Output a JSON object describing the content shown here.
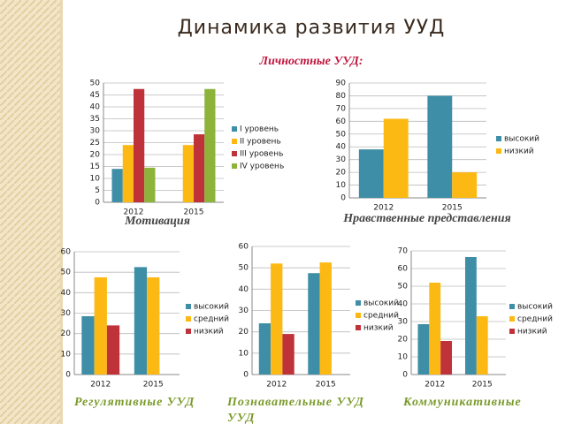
{
  "slide": {
    "title": "Динамика развития УУД",
    "subtitle": "Личностные УУД:",
    "captions": [
      "Мотивация",
      "Нравственные представления",
      "Регулятивные УУД",
      "Познавательные УУД",
      "Коммуникативные",
      "УУД"
    ]
  },
  "chart_data": [
    {
      "type": "bar",
      "categories": [
        "2012",
        "2015"
      ],
      "ylim": [
        0,
        50
      ],
      "yticks": [
        0,
        5,
        10,
        15,
        20,
        25,
        30,
        35,
        40,
        45,
        50
      ],
      "grid": true,
      "legend": "right",
      "series": [
        {
          "name": "I уровень",
          "color": "#3e8ea7",
          "values": [
            14,
            null
          ]
        },
        {
          "name": "II уровень",
          "color": "#fdb913",
          "values": [
            24,
            24
          ]
        },
        {
          "name": "III уровень",
          "color": "#c0323a",
          "values": [
            47.5,
            28.5
          ]
        },
        {
          "name": "IV уровень",
          "color": "#8db33a",
          "values": [
            14.5,
            47.5
          ]
        }
      ]
    },
    {
      "type": "bar",
      "categories": [
        "2012",
        "2015"
      ],
      "ylim": [
        0,
        90
      ],
      "yticks": [
        0,
        10,
        20,
        30,
        40,
        50,
        60,
        70,
        80,
        90
      ],
      "grid": true,
      "legend": "right",
      "series": [
        {
          "name": "высокий",
          "color": "#3e8ea7",
          "values": [
            38,
            80
          ]
        },
        {
          "name": "низкий",
          "color": "#fdb913",
          "values": [
            62,
            20
          ]
        }
      ]
    },
    {
      "type": "bar",
      "categories": [
        "2012",
        "2015"
      ],
      "ylim": [
        0,
        60
      ],
      "yticks": [
        0,
        10,
        20,
        30,
        40,
        50,
        60
      ],
      "grid": true,
      "legend": "right",
      "series": [
        {
          "name": "высокий",
          "color": "#3e8ea7",
          "values": [
            28.5,
            52.5
          ]
        },
        {
          "name": "средний",
          "color": "#fdb913",
          "values": [
            47.5,
            47.5
          ]
        },
        {
          "name": "низкий",
          "color": "#c0323a",
          "values": [
            24,
            null
          ]
        }
      ]
    },
    {
      "type": "bar",
      "categories": [
        "2012",
        "2015"
      ],
      "ylim": [
        0,
        60
      ],
      "yticks": [
        0,
        10,
        20,
        30,
        40,
        50,
        60
      ],
      "grid": true,
      "legend": "right",
      "series": [
        {
          "name": "высокий",
          "color": "#3e8ea7",
          "values": [
            24,
            47.5
          ]
        },
        {
          "name": "средний",
          "color": "#fdb913",
          "values": [
            52,
            52.5
          ]
        },
        {
          "name": "низкий",
          "color": "#c0323a",
          "values": [
            19,
            null
          ]
        }
      ]
    },
    {
      "type": "bar",
      "categories": [
        "2012",
        "2015"
      ],
      "ylim": [
        0,
        70
      ],
      "yticks": [
        0,
        10,
        20,
        30,
        40,
        50,
        60,
        70
      ],
      "grid": true,
      "legend": "right",
      "series": [
        {
          "name": "высокий",
          "color": "#3e8ea7",
          "values": [
            28.5,
            66.5
          ]
        },
        {
          "name": "средний",
          "color": "#fdb913",
          "values": [
            52,
            33
          ]
        },
        {
          "name": "низкий",
          "color": "#c0323a",
          "values": [
            19,
            null
          ]
        }
      ]
    }
  ]
}
